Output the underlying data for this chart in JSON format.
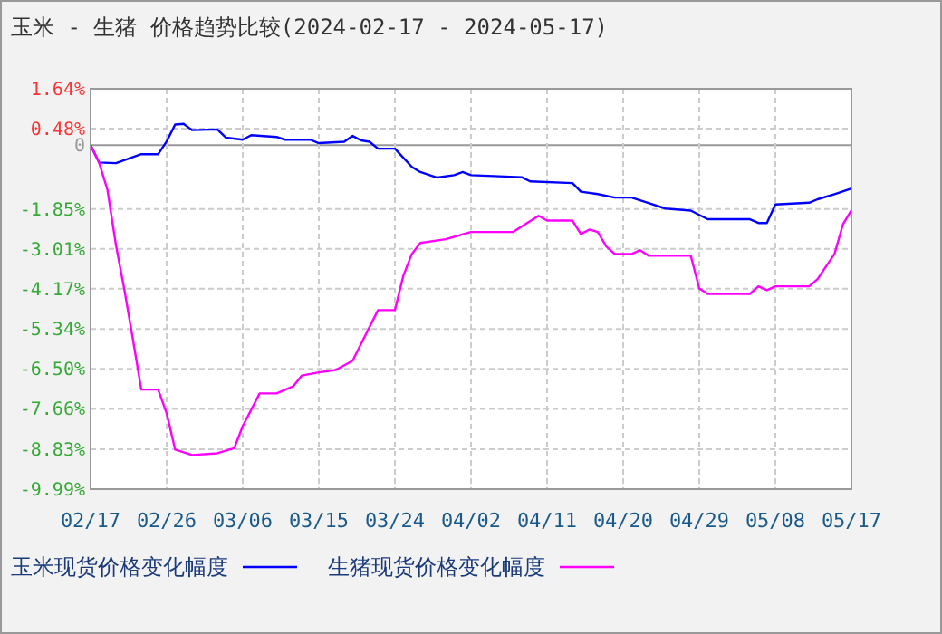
{
  "chart_data": {
    "type": "line",
    "title": "玉米 - 生猪 价格趋势比较(2024-02-17 - 2024-05-17)",
    "xlim": [
      "2024-02-17",
      "2024-05-17"
    ],
    "xticks": [
      {
        "value": "2024-02-17",
        "label": "02/17"
      },
      {
        "value": "2024-02-26",
        "label": "02/26"
      },
      {
        "value": "2024-03-06",
        "label": "03/06"
      },
      {
        "value": "2024-03-15",
        "label": "03/15"
      },
      {
        "value": "2024-03-24",
        "label": "03/24"
      },
      {
        "value": "2024-04-02",
        "label": "04/02"
      },
      {
        "value": "2024-04-11",
        "label": "04/11"
      },
      {
        "value": "2024-04-20",
        "label": "04/20"
      },
      {
        "value": "2024-04-29",
        "label": "04/29"
      },
      {
        "value": "2024-05-08",
        "label": "05/08"
      },
      {
        "value": "2024-05-17",
        "label": "05/17"
      }
    ],
    "ylim": [
      -9.99,
      1.64
    ],
    "yticks": [
      {
        "value": 1.64,
        "label": "1.64%"
      },
      {
        "value": 0.48,
        "label": "0.48%"
      },
      0,
      {
        "value": -1.85,
        "label": "-1.85%"
      },
      {
        "value": -3.01,
        "label": "-3.01%"
      },
      {
        "value": -4.17,
        "label": "-4.17%"
      },
      {
        "value": -5.34,
        "label": "-5.34%"
      },
      {
        "value": -6.5,
        "label": "-6.50%"
      },
      {
        "value": -7.66,
        "label": "-7.66%"
      },
      {
        "value": -8.83,
        "label": "-8.83%"
      },
      {
        "value": -9.99,
        "label": "-9.99%"
      }
    ],
    "grid": true,
    "legend": "bottom",
    "marker": "none",
    "line_style": "solid",
    "series": [
      {
        "name": "玉米现货价格变化幅度",
        "color": "#0000ff",
        "x": [
          "2024-02-17",
          "2024-02-18",
          "2024-02-20",
          "2024-02-23",
          "2024-02-25",
          "2024-02-26",
          "2024-02-27",
          "2024-02-28",
          "2024-02-29",
          "2024-03-03",
          "2024-03-04",
          "2024-03-06",
          "2024-03-07",
          "2024-03-10",
          "2024-03-11",
          "2024-03-14",
          "2024-03-15",
          "2024-03-18",
          "2024-03-19",
          "2024-03-20",
          "2024-03-21",
          "2024-03-22",
          "2024-03-24",
          "2024-03-26",
          "2024-03-27",
          "2024-03-29",
          "2024-03-31",
          "2024-04-01",
          "2024-04-02",
          "2024-04-08",
          "2024-04-09",
          "2024-04-14",
          "2024-04-15",
          "2024-04-17",
          "2024-04-19",
          "2024-04-21",
          "2024-04-23",
          "2024-04-25",
          "2024-04-28",
          "2024-04-30",
          "2024-05-05",
          "2024-05-06",
          "2024-05-07",
          "2024-05-08",
          "2024-05-12",
          "2024-05-13",
          "2024-05-15",
          "2024-05-17"
        ],
        "values": [
          0,
          -0.5,
          -0.52,
          -0.26,
          -0.26,
          0.11,
          0.6,
          0.62,
          0.44,
          0.46,
          0.22,
          0.16,
          0.29,
          0.24,
          0.16,
          0.16,
          0.06,
          0.1,
          0.27,
          0.14,
          0.1,
          -0.1,
          -0.1,
          -0.63,
          -0.78,
          -0.94,
          -0.87,
          -0.78,
          -0.87,
          -0.93,
          -1.05,
          -1.1,
          -1.35,
          -1.42,
          -1.52,
          -1.52,
          -1.68,
          -1.84,
          -1.9,
          -2.15,
          -2.15,
          -2.26,
          -2.26,
          -1.72,
          -1.67,
          -1.57,
          -1.42,
          -1.26
        ]
      },
      {
        "name": "生猪现货价格变化幅度",
        "color": "#ff00ff",
        "x": [
          "2024-02-17",
          "2024-02-18",
          "2024-02-19",
          "2024-02-20",
          "2024-02-21",
          "2024-02-22",
          "2024-02-23",
          "2024-02-25",
          "2024-02-26",
          "2024-02-27",
          "2024-02-29",
          "2024-03-03",
          "2024-03-05",
          "2024-03-06",
          "2024-03-08",
          "2024-03-10",
          "2024-03-12",
          "2024-03-13",
          "2024-03-15",
          "2024-03-17",
          "2024-03-19",
          "2024-03-22",
          "2024-03-24",
          "2024-03-25",
          "2024-03-26",
          "2024-03-27",
          "2024-03-30",
          "2024-04-02",
          "2024-04-07",
          "2024-04-08",
          "2024-04-10",
          "2024-04-11",
          "2024-04-14",
          "2024-04-15",
          "2024-04-16",
          "2024-04-17",
          "2024-04-18",
          "2024-04-19",
          "2024-04-21",
          "2024-04-22",
          "2024-04-23",
          "2024-04-28",
          "2024-04-29",
          "2024-04-30",
          "2024-05-05",
          "2024-05-06",
          "2024-05-07",
          "2024-05-08",
          "2024-05-12",
          "2024-05-13",
          "2024-05-14",
          "2024-05-15",
          "2024-05-16",
          "2024-05-17"
        ],
        "values": [
          0,
          -0.5,
          -1.3,
          -2.9,
          -4.2,
          -5.63,
          -7.1,
          -7.1,
          -7.79,
          -8.84,
          -9.0,
          -8.95,
          -8.8,
          -8.16,
          -7.21,
          -7.21,
          -7.0,
          -6.69,
          -6.6,
          -6.53,
          -6.26,
          -4.79,
          -4.79,
          -3.79,
          -3.16,
          -2.84,
          -2.73,
          -2.52,
          -2.52,
          -2.36,
          -2.05,
          -2.19,
          -2.19,
          -2.58,
          -2.45,
          -2.52,
          -2.94,
          -3.16,
          -3.16,
          -3.05,
          -3.21,
          -3.21,
          -4.16,
          -4.32,
          -4.32,
          -4.1,
          -4.21,
          -4.1,
          -4.1,
          -3.89,
          -3.52,
          -3.16,
          -2.3,
          -1.89
        ]
      }
    ]
  }
}
